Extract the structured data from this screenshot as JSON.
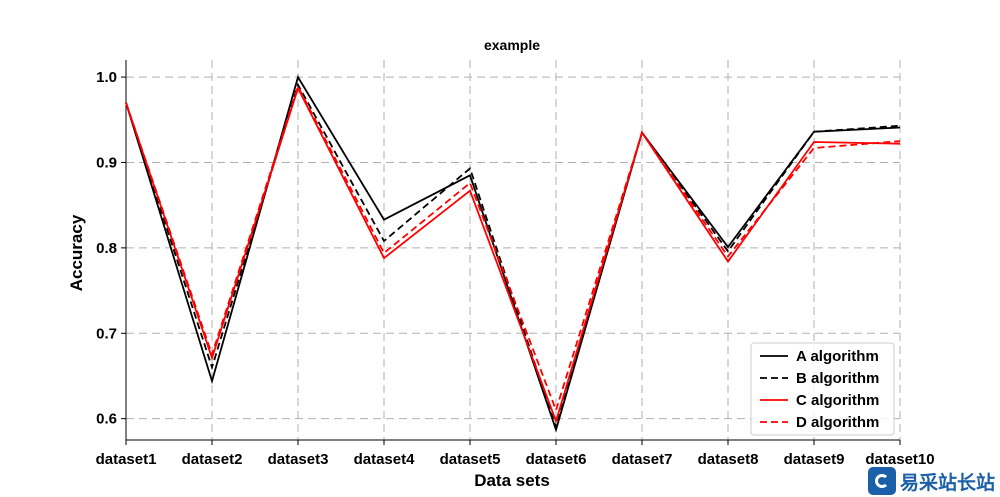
{
  "chart_data": {
    "type": "line",
    "title": "example",
    "xlabel": "Data sets",
    "ylabel": "Accuracy",
    "categories": [
      "dataset1",
      "dataset2",
      "dataset3",
      "dataset4",
      "dataset5",
      "dataset6",
      "dataset7",
      "dataset8",
      "dataset9",
      "dataset10"
    ],
    "ylim": [
      0.575,
      1.02
    ],
    "yticks": [
      0.6,
      0.7,
      0.8,
      0.9,
      1.0
    ],
    "ytick_labels": [
      "0.6",
      "0.7",
      "0.8",
      "0.9",
      "1.0"
    ],
    "grid": true,
    "legend_position": "bottom-right",
    "series": [
      {
        "name": "A algorithm",
        "color": "#000000",
        "style": "solid",
        "values": [
          0.97,
          0.644,
          1.0,
          0.833,
          0.885,
          0.587,
          0.935,
          0.801,
          0.936,
          0.941
        ]
      },
      {
        "name": "B algorithm",
        "color": "#000000",
        "style": "dashed",
        "values": [
          0.97,
          0.66,
          0.991,
          0.808,
          0.893,
          0.59,
          0.935,
          0.796,
          0.936,
          0.943
        ]
      },
      {
        "name": "C algorithm",
        "color": "#ff0000",
        "style": "solid",
        "values": [
          0.97,
          0.671,
          0.987,
          0.788,
          0.867,
          0.597,
          0.935,
          0.784,
          0.924,
          0.922
        ]
      },
      {
        "name": "D algorithm",
        "color": "#ff0000",
        "style": "dashed",
        "values": [
          0.97,
          0.675,
          0.989,
          0.794,
          0.876,
          0.61,
          0.935,
          0.79,
          0.917,
          0.925
        ]
      }
    ]
  },
  "watermark": {
    "text": "易采站长站"
  }
}
